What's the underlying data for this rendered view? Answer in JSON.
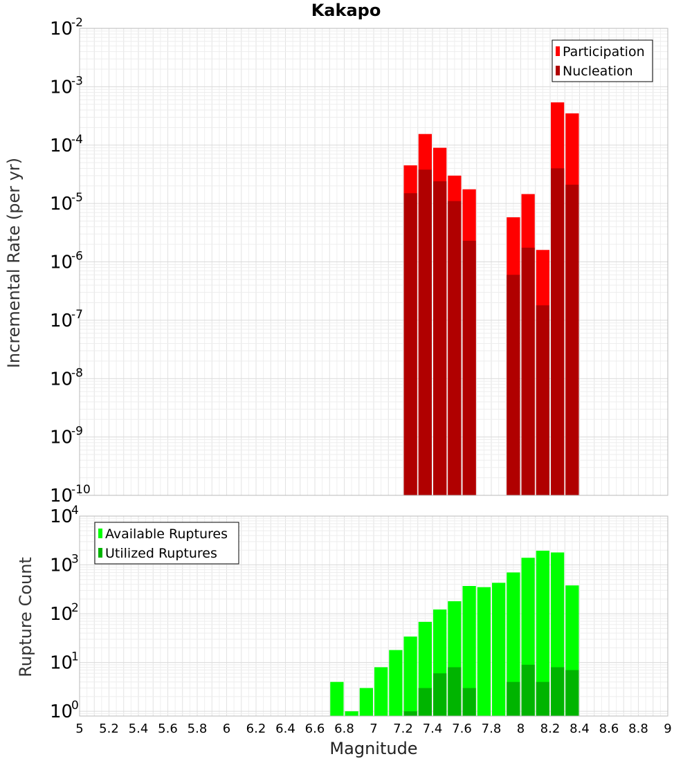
{
  "title": "Kakapo",
  "chart_data": [
    {
      "type": "bar",
      "name": "incremental-rate",
      "ylabel": "Incremental Rate (per yr)",
      "yscale": "log",
      "ylim": [
        1e-10,
        0.01
      ],
      "xlim": [
        5,
        9
      ],
      "legend_position": "top-right",
      "colors": {
        "Participation": "#ff0000",
        "Nucleation": "#b00000"
      },
      "x": [
        7.25,
        7.35,
        7.45,
        7.55,
        7.65,
        7.95,
        8.05,
        8.15,
        8.25,
        8.35
      ],
      "series": [
        {
          "name": "Participation",
          "values": [
            4.5e-05,
            0.000155,
            9e-05,
            3e-05,
            1.75e-05,
            5.8e-06,
            1.45e-05,
            1.6e-06,
            0.00054,
            0.00035
          ]
        },
        {
          "name": "Nucleation",
          "values": [
            1.5e-05,
            3.8e-05,
            2.4e-05,
            1.1e-05,
            2.3e-06,
            6e-07,
            1.75e-06,
            1.8e-07,
            4e-05,
            2.1e-05
          ]
        }
      ]
    },
    {
      "type": "bar",
      "name": "rupture-count",
      "ylabel": "Rupture Count",
      "xlabel": "Magnitude",
      "yscale": "log",
      "ylim": [
        0.8,
        10000.0
      ],
      "xlim": [
        5,
        9
      ],
      "legend_position": "top-left",
      "colors": {
        "Available Ruptures": "#00ff00",
        "Utilized Ruptures": "#00b400"
      },
      "x": [
        6.75,
        6.85,
        6.95,
        7.05,
        7.15,
        7.25,
        7.35,
        7.45,
        7.55,
        7.65,
        7.75,
        7.85,
        7.95,
        8.05,
        8.15,
        8.25,
        8.35
      ],
      "series": [
        {
          "name": "Available Ruptures",
          "values": [
            4,
            1,
            3,
            8,
            18,
            34,
            68,
            122,
            180,
            370,
            350,
            430,
            700,
            1400,
            1950,
            1800,
            380
          ]
        },
        {
          "name": "Utilized Ruptures",
          "values": [
            null,
            null,
            null,
            null,
            null,
            1,
            3,
            6,
            8,
            3,
            null,
            null,
            4,
            9,
            4,
            8,
            7
          ]
        }
      ]
    }
  ],
  "x_ticks": [
    "5",
    "5.2",
    "5.4",
    "5.6",
    "5.8",
    "6",
    "6.2",
    "6.4",
    "6.6",
    "6.8",
    "7",
    "7.2",
    "7.4",
    "7.6",
    "7.8",
    "8",
    "8.2",
    "8.4",
    "8.6",
    "8.8",
    "9"
  ],
  "top_y_ticks": [
    {
      "base": "10",
      "exp": "-2"
    },
    {
      "base": "10",
      "exp": "-3"
    },
    {
      "base": "10",
      "exp": "-4"
    },
    {
      "base": "10",
      "exp": "-5"
    },
    {
      "base": "10",
      "exp": "-6"
    },
    {
      "base": "10",
      "exp": "-7"
    },
    {
      "base": "10",
      "exp": "-8"
    },
    {
      "base": "10",
      "exp": "-9"
    },
    {
      "base": "10",
      "exp": "-10"
    }
  ],
  "bottom_y_ticks": [
    {
      "base": "10",
      "exp": "0"
    },
    {
      "base": "10",
      "exp": "1"
    },
    {
      "base": "10",
      "exp": "2"
    },
    {
      "base": "10",
      "exp": "3"
    },
    {
      "base": "10",
      "exp": "4"
    }
  ]
}
